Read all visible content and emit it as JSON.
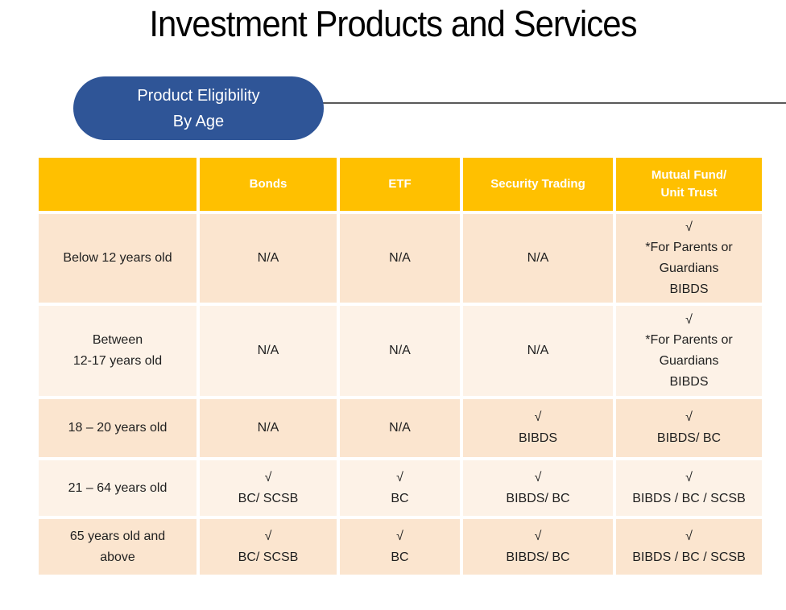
{
  "slide": {
    "title": "Investment Products and Services",
    "badge_label": "Product Eligibility\nBy Age"
  },
  "colors": {
    "badge_blue": "#2F5597",
    "header_gold": "#FFC000",
    "band_dark_peach": "#FBE5CF",
    "band_light_cream": "#FDF2E7",
    "connector_gray": "#595959",
    "header_text": "#FFFFFF",
    "body_text": "#1F1F1F"
  },
  "icons": {
    "check_mark": "√"
  },
  "table": {
    "headers": [
      "",
      "Bonds",
      "ETF",
      "Security Trading",
      "Mutual Fund/\nUnit Trust"
    ],
    "rows": [
      [
        "Below 12 years old",
        "N/A",
        "N/A",
        "N/A",
        "√\n*For Parents or\nGuardians\nBIBDS"
      ],
      [
        "Between\n12-17 years old",
        "N/A",
        "N/A",
        "N/A",
        "√\n*For Parents or\nGuardians\nBIBDS"
      ],
      [
        "18 – 20 years old",
        "N/A",
        "N/A",
        "√\nBIBDS",
        "√\nBIBDS/ BC"
      ],
      [
        "21 – 64 years old",
        "√\nBC/ SCSB",
        "√\nBC",
        "√\nBIBDS/ BC",
        "√\nBIBDS / BC / SCSB"
      ],
      [
        "65 years old and\nabove",
        "√\nBC/ SCSB",
        "√\nBC",
        "√\nBIBDS/ BC",
        "√\nBIBDS / BC / SCSB"
      ]
    ]
  }
}
